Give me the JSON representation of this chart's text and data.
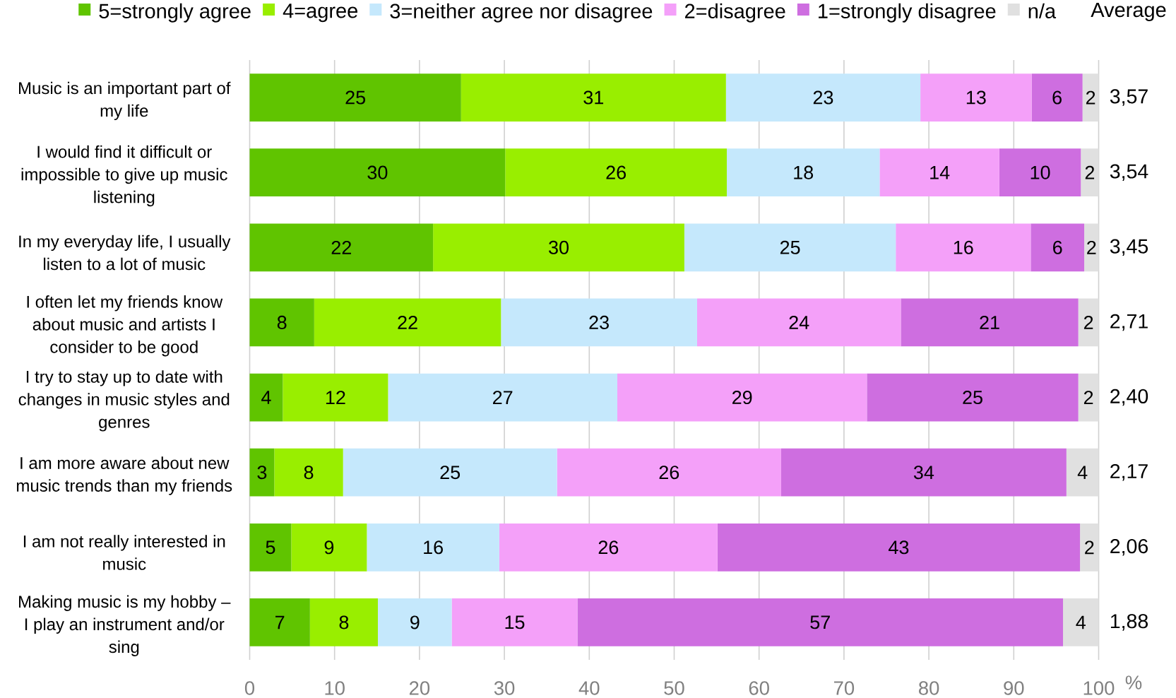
{
  "chart_data": {
    "type": "bar",
    "orientation": "horizontal",
    "stacked": true,
    "categories": [
      "Music is an important part of my life",
      "I would find it difficult or impossible to give up music listening",
      "In my everyday life, I usually listen to a lot of music",
      "I often let my friends know about music and artists I consider to be good",
      "I try to stay up to date with changes in music styles and genres",
      "I am more aware about new music trends than my friends",
      "I am not really interested in music",
      "Making music is my hobby – I play an instrument and/or sing"
    ],
    "series": [
      {
        "name": "5=strongly agree",
        "color": "#60c400",
        "values": [
          24.9,
          30.1,
          21.6,
          7.6,
          3.9,
          2.9,
          4.9,
          7.1
        ],
        "value_labels": [
          "25",
          "30",
          "22",
          "8",
          "4",
          "3",
          "5",
          "7"
        ]
      },
      {
        "name": "4=agree",
        "color": "#99ee00",
        "values": [
          31.2,
          26.1,
          29.6,
          22.0,
          12.4,
          8.1,
          8.9,
          8.0
        ],
        "value_labels": [
          "31",
          "26",
          "30",
          "22",
          "12",
          "8",
          "9",
          "8"
        ]
      },
      {
        "name": "3=neither agree nor disagree",
        "color": "#c5e8fc",
        "values": [
          22.9,
          18.0,
          24.9,
          23.1,
          27.0,
          25.2,
          15.6,
          8.7
        ],
        "value_labels": [
          "23",
          "18",
          "25",
          "23",
          "27",
          "25",
          "16",
          "9"
        ]
      },
      {
        "name": "2=disagree",
        "color": "#f4a0f9",
        "values": [
          13.1,
          14.1,
          15.9,
          24.0,
          29.4,
          26.4,
          25.7,
          14.8
        ],
        "value_labels": [
          "13",
          "14",
          "16",
          "24",
          "29",
          "26",
          "26",
          "15"
        ]
      },
      {
        "name": "1=strongly disagree",
        "color": "#ce6ee0",
        "values": [
          6.0,
          9.6,
          6.3,
          20.9,
          24.9,
          33.6,
          42.7,
          57.2
        ],
        "value_labels": [
          "6",
          "10",
          "6",
          "21",
          "25",
          "34",
          "43",
          "57"
        ]
      },
      {
        "name": "n/a",
        "color": "#e0e0e0",
        "values": [
          1.9,
          2.1,
          1.7,
          2.4,
          2.4,
          3.8,
          2.2,
          4.2
        ],
        "value_labels": [
          "2",
          "2",
          "2",
          "2",
          "2",
          "4",
          "2",
          "4"
        ]
      }
    ],
    "xlim": [
      0,
      100
    ],
    "xticks": [
      0,
      10,
      20,
      30,
      40,
      50,
      60,
      70,
      80,
      90,
      100
    ],
    "xlabel": "%",
    "grid": "x",
    "legend": "top",
    "annotations": [
      "Average",
      "3,57",
      "3,54",
      "3,45",
      "2,71",
      "2,40",
      "2,17",
      "2,06",
      "1,88"
    ]
  }
}
